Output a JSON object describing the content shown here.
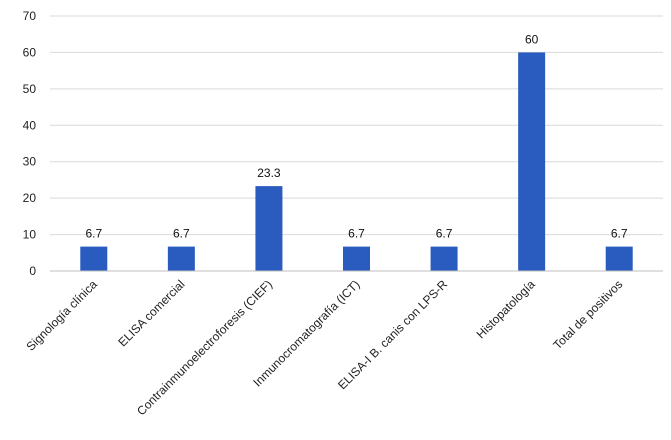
{
  "chart_data": {
    "type": "bar",
    "categories": [
      "Signología clínica",
      "ELISA comercial",
      "Contrainmunoelectroforesis (CIEF)",
      "Inmunocromatografía (ICT)",
      "ELISA-I B. canis con LPS-R",
      "Histopatología",
      "Total de positivos"
    ],
    "values": [
      6.7,
      6.7,
      23.3,
      6.7,
      6.7,
      60,
      6.7
    ],
    "data_labels": [
      "6.7",
      "6.7",
      "23.3",
      "6.7",
      "6.7",
      "60",
      "6.7"
    ],
    "yticks": [
      0,
      10,
      20,
      30,
      40,
      50,
      60,
      70
    ],
    "ylim": [
      0,
      70
    ],
    "grid": true,
    "legend": "none",
    "bar_color": "#2a5cbf"
  }
}
